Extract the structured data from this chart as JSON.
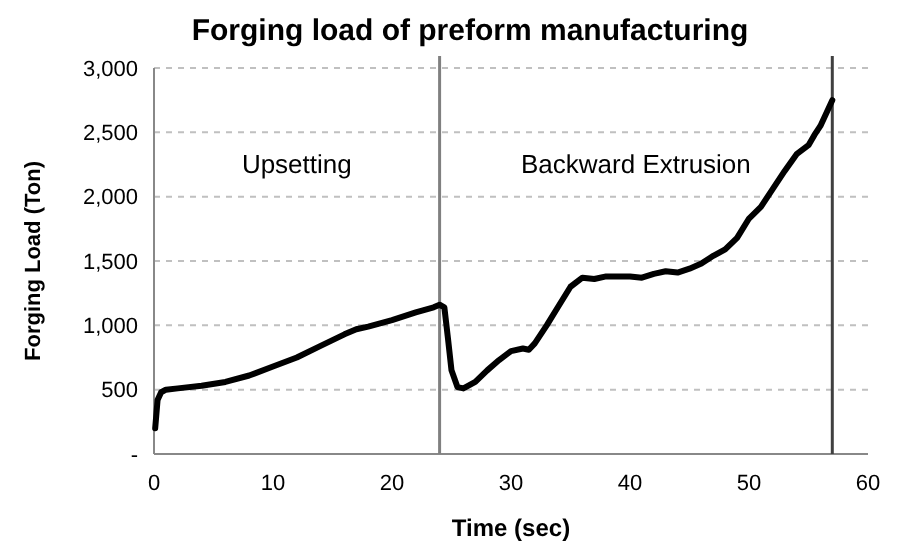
{
  "chart_data": {
    "type": "line",
    "title": "Forging load of preform manufacturing",
    "xlabel": "Time (sec)",
    "ylabel": "Forging Load (Ton)",
    "xlim": [
      0,
      60
    ],
    "xticks": [
      0,
      10,
      20,
      30,
      40,
      50,
      60
    ],
    "ylim": [
      0,
      3000
    ],
    "yticks": [
      {
        "value": 0,
        "label": "-"
      },
      500,
      {
        "value": 1000,
        "label": "1,000"
      },
      {
        "value": 1500,
        "label": "1,500"
      },
      {
        "value": 2000,
        "label": "2,000"
      },
      {
        "value": 2500,
        "label": "2,500"
      },
      {
        "value": 3000,
        "label": "3,000"
      }
    ],
    "grid": "y",
    "marker": "none",
    "line_style": "solid",
    "ref_lines": [
      {
        "axis": "x",
        "value": 24,
        "color": "#808080"
      },
      {
        "axis": "x",
        "value": 57,
        "color": "#404040"
      }
    ],
    "annotations": [
      "Upsetting",
      "Backward Extrusion"
    ],
    "series": [
      {
        "color": "#000000",
        "x": [
          0.1,
          0.3,
          0.6,
          1,
          2,
          4,
          6,
          8,
          10,
          12,
          14,
          16,
          17,
          18,
          20,
          22,
          23.5,
          24,
          24.4,
          24.7,
          25,
          25.5,
          26,
          27,
          28,
          29,
          30,
          31,
          31.5,
          32,
          33,
          34,
          35,
          36,
          37,
          38,
          40,
          41,
          42,
          43,
          44,
          45,
          46,
          47,
          48,
          49,
          50,
          51,
          52,
          53,
          54,
          55,
          55.5,
          56,
          57
        ],
        "values": [
          200,
          420,
          480,
          500,
          510,
          530,
          560,
          610,
          680,
          750,
          840,
          930,
          970,
          990,
          1040,
          1100,
          1140,
          1160,
          1140,
          900,
          650,
          520,
          510,
          560,
          650,
          730,
          800,
          820,
          810,
          860,
          1000,
          1150,
          1300,
          1370,
          1360,
          1380,
          1380,
          1370,
          1400,
          1420,
          1410,
          1440,
          1480,
          1540,
          1590,
          1680,
          1830,
          1920,
          2060,
          2200,
          2330,
          2400,
          2480,
          2550,
          2750
        ]
      }
    ]
  }
}
